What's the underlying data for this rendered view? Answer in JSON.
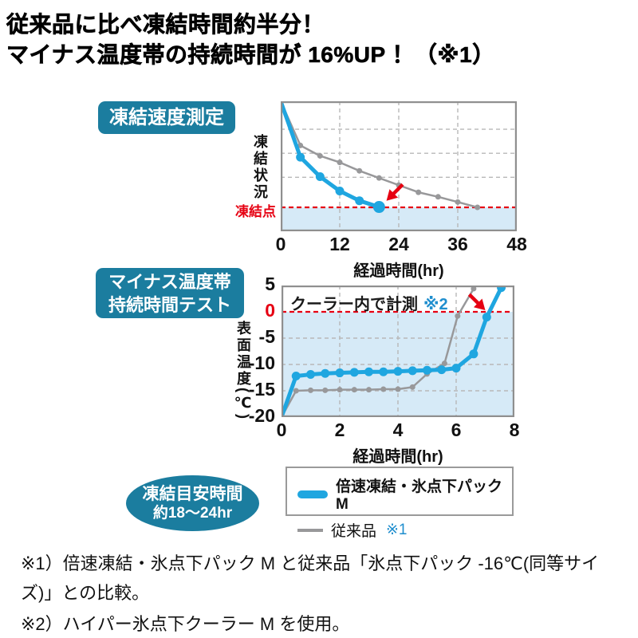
{
  "title": {
    "line1": "従来品に比べ凍結時間約半分！",
    "line2": "マイナス温度帯の持続時間が 16%UP ！（※1）"
  },
  "colors": {
    "teal_badge": "#1b7d9f",
    "blue_line": "#1fa6e0",
    "gray_line": "#98989a",
    "red": "#e60012",
    "light_blue_fill": "#d6eaf7",
    "grid": "#b8b8b8",
    "plot_border": "#8f8f8f",
    "ref_blue": "#1f8ece",
    "legend_border": "#9a9a9a"
  },
  "chart_data": [
    {
      "type": "line",
      "badge_lines": [
        "凍結速度測定"
      ],
      "ylabel": "凍結状況",
      "xlabel": "経過時間(hr)",
      "redline_label": "凍結点",
      "xlim": [
        0,
        48
      ],
      "ylim": [
        0,
        100
      ],
      "y_unit": "relative freeze state (no numeric scale shown)",
      "x_ticks": [
        {
          "v": 0,
          "label": "0"
        },
        {
          "v": 12,
          "label": "12"
        },
        {
          "v": 24,
          "label": "24"
        },
        {
          "v": 36,
          "label": "36"
        },
        {
          "v": 48,
          "label": "48"
        }
      ],
      "y_ticks": [],
      "grid_x": [
        12,
        24,
        36
      ],
      "grid_y": [
        78.5,
        60,
        41.5
      ],
      "redline_y": 18.4,
      "fill_below_y": 18.4,
      "series": [
        {
          "name": "倍速凍結・氷点下パックM",
          "color_key": "blue_line",
          "line_width": 5,
          "dot_r": 5.5,
          "end_dot_r": 7.5,
          "skip_first_dot": true,
          "points": [
            [
              0,
              100
            ],
            [
              4,
              57
            ],
            [
              8,
              42
            ],
            [
              12,
              31
            ],
            [
              16,
              23.5
            ],
            [
              20,
              18.7
            ]
          ]
        },
        {
          "name": "従来品 ※1",
          "color_key": "gray_line",
          "line_width": 2.5,
          "dot_r": 3.5,
          "skip_first_dot": true,
          "points": [
            [
              0,
              100
            ],
            [
              4,
              66
            ],
            [
              8,
              58
            ],
            [
              12,
              53
            ],
            [
              16,
              46.5
            ],
            [
              20,
              41
            ],
            [
              24,
              35.5
            ],
            [
              28,
              30
            ],
            [
              32,
              26.5
            ],
            [
              36,
              22.5
            ],
            [
              40,
              18.4
            ]
          ]
        }
      ],
      "arrow": {
        "from": [
          24.8,
          36
        ],
        "to": [
          21.5,
          23.5
        ]
      }
    },
    {
      "type": "line",
      "badge_lines": [
        "マイナス温度帯",
        "持続時間テスト"
      ],
      "ylabel": "表面温度(℃)",
      "xlabel": "経過時間(hr)",
      "annotation": {
        "text": "クーラー内で計測",
        "ref": "※2"
      },
      "xlim": [
        0,
        8
      ],
      "ylim": [
        -20,
        5
      ],
      "x_ticks": [
        {
          "v": 0,
          "label": "0"
        },
        {
          "v": 2,
          "label": "2"
        },
        {
          "v": 4,
          "label": "4"
        },
        {
          "v": 6,
          "label": "6"
        },
        {
          "v": 8,
          "label": "8"
        }
      ],
      "y_ticks": [
        {
          "v": 5,
          "label": "5"
        },
        {
          "v": 0,
          "label": "0",
          "red": true
        },
        {
          "v": -5,
          "label": "-5"
        },
        {
          "v": -10,
          "label": "-10"
        },
        {
          "v": -15,
          "label": "-15"
        },
        {
          "v": -20,
          "label": "-20"
        }
      ],
      "grid_x": [
        2,
        4,
        6
      ],
      "grid_y": [
        -5,
        -10,
        -15
      ],
      "redline_y": 0,
      "fill_below_y": 0,
      "series": [
        {
          "name": "倍速凍結・氷点下パックM",
          "color_key": "blue_line",
          "line_width": 5,
          "dot_r": 5.5,
          "skip_first_dot": true,
          "points": [
            [
              0,
              -20
            ],
            [
              0.5,
              -12.2
            ],
            [
              1,
              -11.9
            ],
            [
              1.5,
              -11.7
            ],
            [
              2,
              -11.6
            ],
            [
              2.5,
              -11.5
            ],
            [
              3,
              -11.4
            ],
            [
              3.5,
              -11.4
            ],
            [
              4,
              -11.3
            ],
            [
              4.5,
              -11.2
            ],
            [
              5,
              -11.1
            ],
            [
              5.5,
              -11
            ],
            [
              6,
              -10.7
            ],
            [
              6.6,
              -8
            ],
            [
              7.05,
              -1
            ],
            [
              7.55,
              4.6
            ]
          ]
        },
        {
          "name": "従来品 ※1",
          "color_key": "gray_line",
          "line_width": 2.5,
          "dot_r": 3.5,
          "skip_first_dot": true,
          "skip_last_dot": true,
          "points": [
            [
              0,
              -20
            ],
            [
              0.5,
              -15
            ],
            [
              1,
              -14.9
            ],
            [
              1.5,
              -14.9
            ],
            [
              2,
              -14.8
            ],
            [
              2.5,
              -14.8
            ],
            [
              3,
              -14.8
            ],
            [
              3.5,
              -14.7
            ],
            [
              4,
              -14.7
            ],
            [
              4.5,
              -14.3
            ],
            [
              5,
              -11.8
            ],
            [
              5.6,
              -9.8
            ],
            [
              6.05,
              -0.8
            ],
            [
              6.6,
              4.4
            ],
            [
              6.72,
              6.8
            ]
          ]
        }
      ],
      "arrow": {
        "from": [
          6.45,
          3.3
        ],
        "to": [
          7.0,
          0.3
        ]
      }
    }
  ],
  "legend": {
    "items": [
      {
        "label": "倍速凍結・氷点下パックM",
        "color_key": "blue_line",
        "bold": true
      },
      {
        "label": "従来品",
        "ref": "※1",
        "color_key": "gray_line",
        "bold": false
      }
    ]
  },
  "estimate_badge": {
    "line1": "凍結目安時間",
    "line2": "約18〜24hr"
  },
  "footnotes": [
    "※1）倍速凍結・氷点下パック M と従来品「氷点下パック -16℃(同等サイズ)」との比較。",
    "※2）ハイパー氷点下クーラー M を使用。"
  ]
}
